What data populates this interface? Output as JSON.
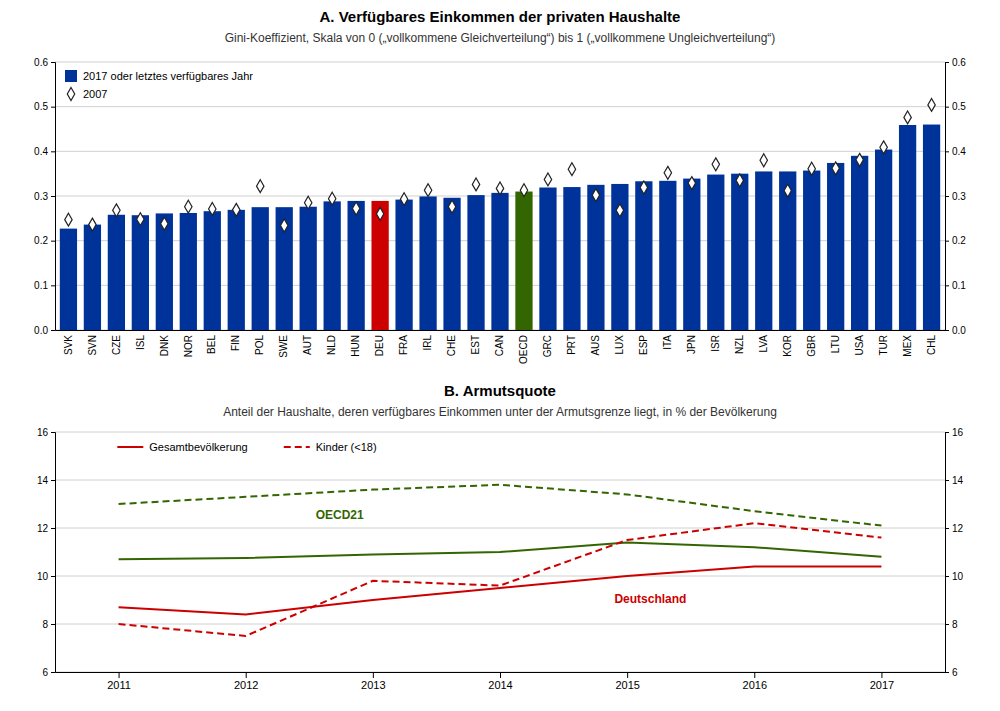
{
  "chart_data": [
    {
      "type": "bar",
      "title": "A. Verfügbares Einkommen der privaten Haushalte",
      "subtitle": "Gini-Koeffizient, Skala von 0 („vollkommene Gleichverteilung“) bis 1 („vollkommene Ungleichverteilung“)",
      "categories": [
        "SVK",
        "SVN",
        "CZE",
        "ISL",
        "DNK",
        "NOR",
        "BEL",
        "FIN",
        "POL",
        "SWE",
        "AUT",
        "NLD",
        "HUN",
        "DEU",
        "FRA",
        "IRL",
        "CHE",
        "EST",
        "CAN",
        "OECD",
        "GRC",
        "PRT",
        "AUS",
        "LUX",
        "ESP",
        "ITA",
        "JPN",
        "ISR",
        "NZL",
        "LVA",
        "KOR",
        "GBR",
        "LTU",
        "USA",
        "TUR",
        "MEX",
        "CHL"
      ],
      "series": [
        {
          "name": "2017 oder letztes verfügbares Jahr",
          "type": "bar",
          "color": "#003399",
          "colors": [
            "#003399",
            "#003399",
            "#003399",
            "#003399",
            "#003399",
            "#003399",
            "#003399",
            "#003399",
            "#003399",
            "#003399",
            "#003399",
            "#003399",
            "#003399",
            "#CC0000",
            "#003399",
            "#003399",
            "#003399",
            "#003399",
            "#003399",
            "#336600",
            "#003399",
            "#003399",
            "#003399",
            "#003399",
            "#003399",
            "#003399",
            "#003399",
            "#003399",
            "#003399",
            "#003399",
            "#003399",
            "#003399",
            "#003399",
            "#003399",
            "#003399",
            "#003399",
            "#003399"
          ],
          "values": [
            0.227,
            0.236,
            0.258,
            0.257,
            0.261,
            0.262,
            0.266,
            0.269,
            0.275,
            0.275,
            0.276,
            0.288,
            0.289,
            0.289,
            0.292,
            0.299,
            0.296,
            0.302,
            0.307,
            0.31,
            0.319,
            0.32,
            0.325,
            0.327,
            0.333,
            0.334,
            0.339,
            0.348,
            0.35,
            0.355,
            0.355,
            0.357,
            0.374,
            0.39,
            0.404,
            0.459,
            0.46
          ]
        },
        {
          "name": "2007",
          "type": "scatter",
          "marker": "diamond",
          "values": [
            0.247,
            0.236,
            0.268,
            0.248,
            0.238,
            0.276,
            0.271,
            0.269,
            0.322,
            0.234,
            0.285,
            0.294,
            0.272,
            0.26,
            0.293,
            0.313,
            0.276,
            0.326,
            0.317,
            0.313,
            0.337,
            0.36,
            0.302,
            0.268,
            0.319,
            0.352,
            0.329,
            0.371,
            0.335,
            0.38,
            0.312,
            0.361,
            0.362,
            0.381,
            0.409,
            0.476,
            0.504
          ]
        }
      ],
      "ylim": [
        0,
        0.6
      ],
      "yticks": [
        {
          "value": 0,
          "label": "0.0"
        },
        0.1,
        0.2,
        0.3,
        0.4,
        0.5,
        0.6
      ],
      "grid": true,
      "legend": "upper left"
    },
    {
      "type": "line",
      "title": "B. Armutsquote",
      "subtitle": "Anteil der Haushalte, deren verfügbares Einkommen unter der Armutsgrenze liegt, in % der Bevölkerung",
      "x": [
        2011,
        2012,
        2013,
        2014,
        2015,
        2016,
        2017
      ],
      "series": [
        {
          "name": "Gesamtbevölkerung",
          "color": "#336600",
          "line_style": "solid",
          "values": [
            10.7,
            10.75,
            10.9,
            11.0,
            11.4,
            11.2,
            10.8
          ]
        },
        {
          "name": "Kinder (<18)",
          "color": "#336600",
          "line_style": "dashed",
          "values": [
            13.0,
            13.3,
            13.6,
            13.8,
            13.4,
            12.7,
            12.1
          ]
        },
        {
          "name": "Gesamtbevölkerung",
          "color": "#CC0000",
          "line_style": "solid",
          "values": [
            8.7,
            8.4,
            9.0,
            9.5,
            10.0,
            10.4,
            10.4
          ]
        },
        {
          "name": "Kinder (<18)",
          "color": "#CC0000",
          "line_style": "dashed",
          "values": [
            8.0,
            7.5,
            9.8,
            9.6,
            11.5,
            12.2,
            11.6
          ]
        }
      ],
      "annotations": [
        {
          "text": "OECD21",
          "color": "#336600",
          "x": 2012.55,
          "y": 12.55
        },
        {
          "text": "Deutschland",
          "color": "#CC0000",
          "x": 2014.9,
          "y": 9.05
        }
      ],
      "xlim": [
        2010.5,
        2017.5
      ],
      "xticks": [
        2011,
        2012,
        2013,
        2014,
        2015,
        2016,
        2017
      ],
      "ylim": [
        6,
        16
      ],
      "yticks": [
        6,
        8,
        10,
        12,
        14,
        16
      ],
      "grid": true,
      "legend": "upper left"
    }
  ]
}
